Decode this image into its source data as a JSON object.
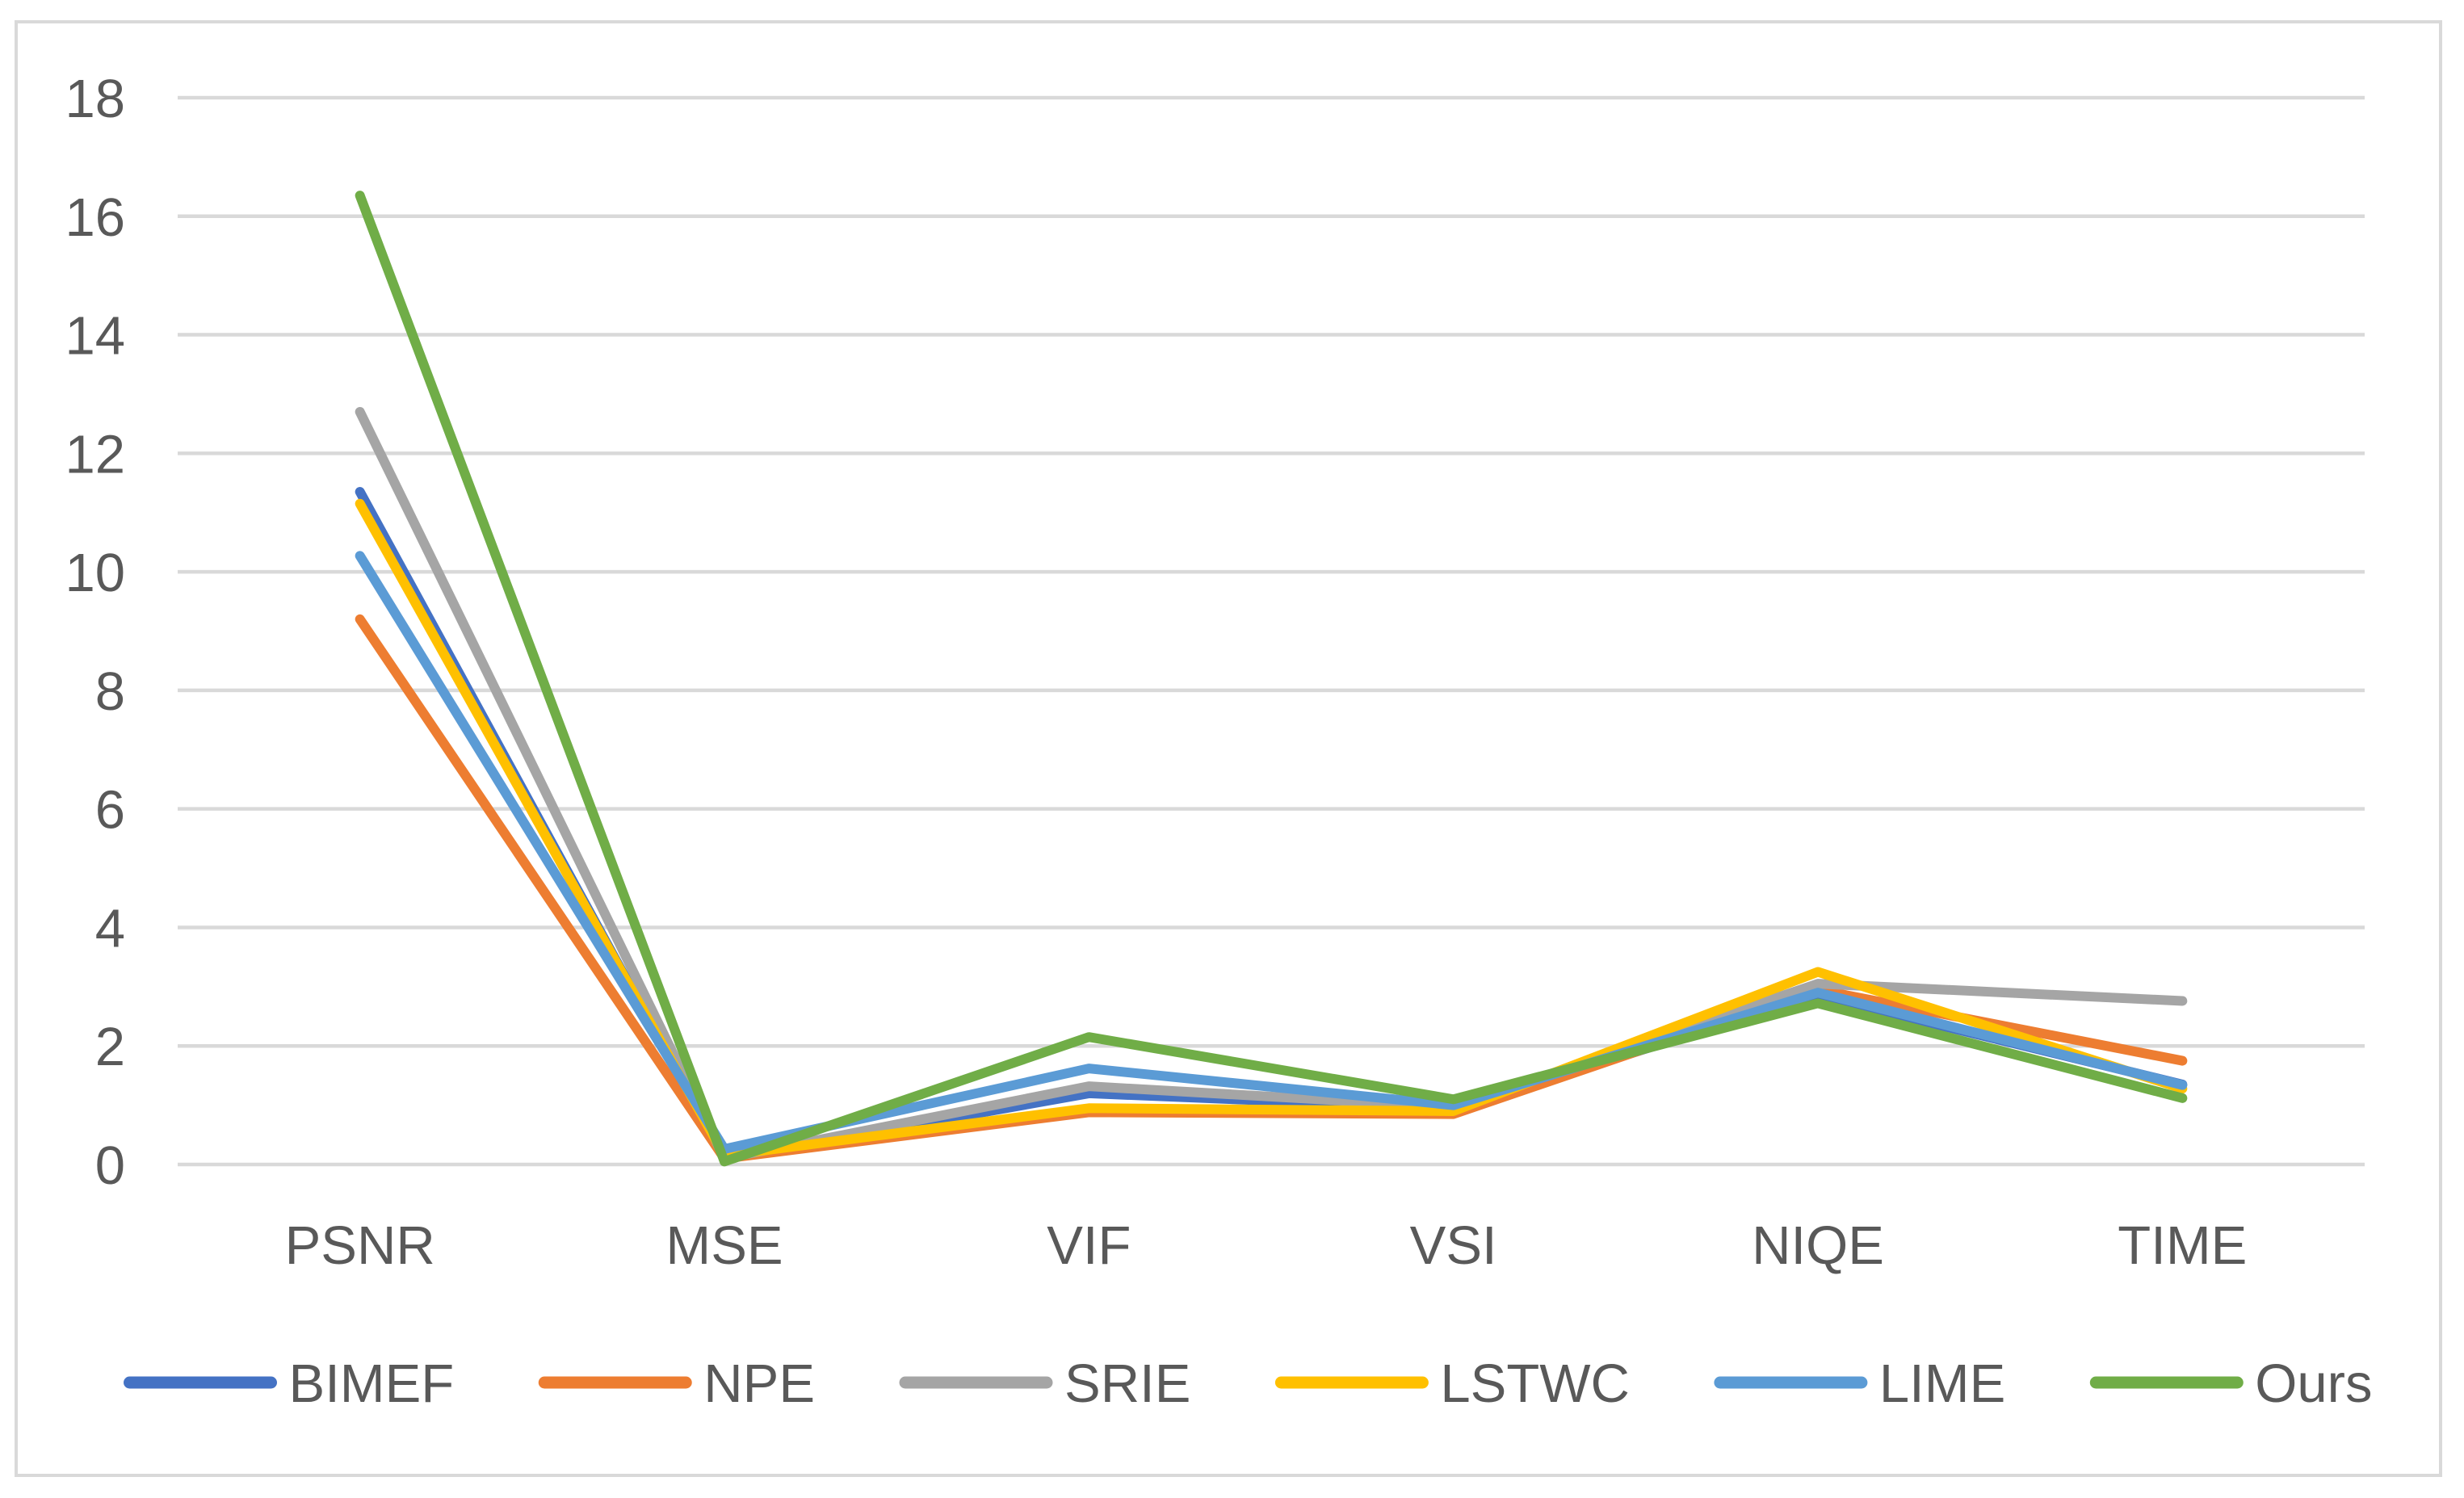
{
  "chart_data": {
    "type": "line",
    "title": "",
    "xlabel": "",
    "ylabel": "",
    "categories": [
      "PSNR",
      "MSE",
      "VIF",
      "VSI",
      "NIQE",
      "TIME"
    ],
    "series": [
      {
        "name": "BIMEF",
        "color": "#4472C4",
        "values": [
          11.35,
          0.1,
          1.2,
          0.95,
          2.85,
          1.35
        ]
      },
      {
        "name": "NPE",
        "color": "#ED7D31",
        "values": [
          9.2,
          0.1,
          0.88,
          0.85,
          2.95,
          1.75
        ]
      },
      {
        "name": "SRIE",
        "color": "#A5A5A5",
        "values": [
          12.7,
          0.1,
          1.32,
          0.97,
          3.05,
          2.76
        ]
      },
      {
        "name": "LSTWC",
        "color": "#FFC000",
        "values": [
          11.15,
          0.15,
          0.95,
          0.9,
          3.25,
          1.28
        ]
      },
      {
        "name": "LIME",
        "color": "#5B9BD5",
        "values": [
          10.27,
          0.26,
          1.62,
          1.0,
          2.9,
          1.34
        ]
      },
      {
        "name": "Ours",
        "color": "#70AD47",
        "values": [
          16.35,
          0.05,
          2.15,
          1.1,
          2.72,
          1.12
        ]
      }
    ],
    "ylim": [
      0,
      18
    ],
    "yticks": [
      0,
      2,
      4,
      6,
      8,
      10,
      12,
      14,
      16,
      18
    ],
    "grid": true,
    "legend_position": "bottom"
  },
  "colors": {
    "grid": "#D9D9D9",
    "frame_border": "#D9D9D9",
    "text": "#595959",
    "background": "#FFFFFF"
  }
}
